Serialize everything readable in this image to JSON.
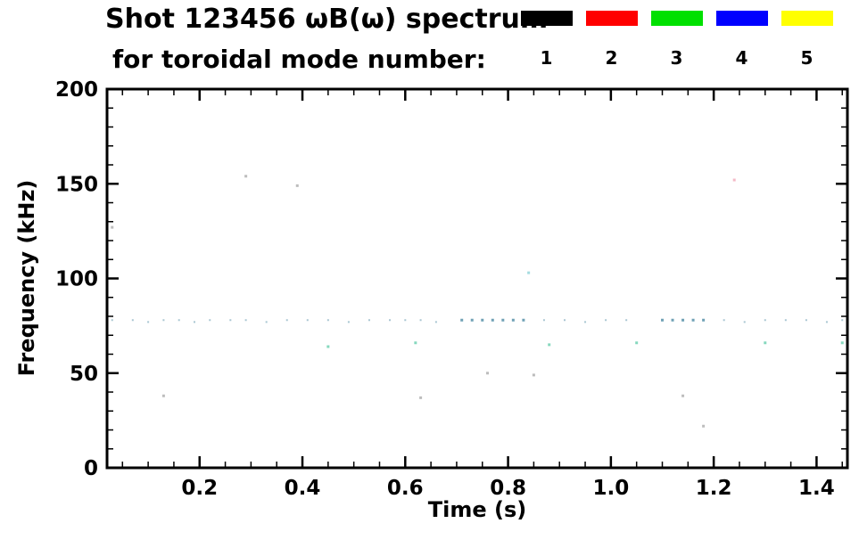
{
  "header": {
    "title_line1": "Shot 123456 ωB(ω) spectrum",
    "title_line2": "for toroidal mode number:"
  },
  "axes": {
    "x_label": "Time (s)",
    "y_label": "Frequency (kHz)",
    "x_tick_labels": [
      "0.2",
      "0.4",
      "0.6",
      "0.8",
      "1.0",
      "1.2",
      "1.4"
    ],
    "y_tick_labels": [
      "0",
      "50",
      "100",
      "150",
      "200"
    ]
  },
  "chart_data": {
    "type": "scatter",
    "title": "Shot 123456 ωB(ω) spectrum for toroidal mode number:",
    "xlabel": "Time (s)",
    "ylabel": "Frequency (kHz)",
    "xlim": [
      0.02,
      1.46
    ],
    "ylim": [
      0,
      200
    ],
    "x_ticks": [
      0.2,
      0.4,
      0.6,
      0.8,
      1.0,
      1.2,
      1.4
    ],
    "y_ticks": [
      0,
      50,
      100,
      150,
      200
    ],
    "x_minor_step": 0.05,
    "y_minor_step": 10,
    "grid": false,
    "background": "#ffffff",
    "frame_color": "#000000",
    "legend": {
      "position": "top-right",
      "entries": [
        {
          "label": "1",
          "color": "#000000"
        },
        {
          "label": "2",
          "color": "#ff0000"
        },
        {
          "label": "3",
          "color": "#00e000"
        },
        {
          "label": "4",
          "color": "#0000ff"
        },
        {
          "label": "5",
          "color": "#ffff00"
        }
      ]
    },
    "series": [
      {
        "name": "faint mode band ~78 kHz",
        "color": "#a9c6d2",
        "size": 2,
        "points": [
          [
            0.03,
            78
          ],
          [
            0.07,
            78
          ],
          [
            0.1,
            77
          ],
          [
            0.13,
            78
          ],
          [
            0.16,
            78
          ],
          [
            0.19,
            77
          ],
          [
            0.22,
            78
          ],
          [
            0.26,
            78
          ],
          [
            0.29,
            78
          ],
          [
            0.33,
            77
          ],
          [
            0.37,
            78
          ],
          [
            0.41,
            78
          ],
          [
            0.45,
            78
          ],
          [
            0.49,
            77
          ],
          [
            0.53,
            78
          ],
          [
            0.57,
            78
          ],
          [
            0.6,
            78
          ],
          [
            0.63,
            78
          ],
          [
            0.66,
            77
          ],
          [
            0.87,
            78
          ],
          [
            0.91,
            78
          ],
          [
            0.95,
            77
          ],
          [
            0.99,
            78
          ],
          [
            1.03,
            78
          ],
          [
            1.22,
            78
          ],
          [
            1.26,
            77
          ],
          [
            1.3,
            78
          ],
          [
            1.34,
            78
          ],
          [
            1.38,
            78
          ],
          [
            1.42,
            77
          ],
          [
            1.45,
            78
          ]
        ]
      },
      {
        "name": "stronger mode band segments ~78 kHz",
        "color": "#6fa0b5",
        "size": 3,
        "points": [
          [
            0.71,
            78
          ],
          [
            0.73,
            78
          ],
          [
            0.75,
            78
          ],
          [
            0.77,
            78
          ],
          [
            0.79,
            78
          ],
          [
            0.81,
            78
          ],
          [
            0.83,
            78
          ],
          [
            1.1,
            78
          ],
          [
            1.12,
            78
          ],
          [
            1.14,
            78
          ],
          [
            1.16,
            78
          ],
          [
            1.18,
            78
          ]
        ]
      },
      {
        "name": "scattered points ~65 kHz",
        "color": "#86d8be",
        "size": 3,
        "points": [
          [
            0.45,
            64
          ],
          [
            0.62,
            66
          ],
          [
            0.88,
            65
          ],
          [
            1.05,
            66
          ],
          [
            1.3,
            66
          ],
          [
            1.45,
            66
          ]
        ]
      },
      {
        "name": "isolated faint gray points",
        "color": "#bdbdbd",
        "size": 3,
        "points": [
          [
            0.29,
            154
          ],
          [
            0.39,
            149
          ],
          [
            0.03,
            127
          ],
          [
            0.76,
            50
          ],
          [
            0.85,
            49
          ],
          [
            0.13,
            38
          ],
          [
            0.63,
            37
          ],
          [
            1.14,
            38
          ],
          [
            1.18,
            22
          ]
        ]
      },
      {
        "name": "isolated faint pink point ~152 kHz",
        "color": "#f4b9c6",
        "size": 3,
        "points": [
          [
            1.24,
            152
          ]
        ]
      },
      {
        "name": "isolated faint cyan point ~103 kHz",
        "color": "#a5dce0",
        "size": 3,
        "points": [
          [
            0.84,
            103
          ]
        ]
      }
    ]
  }
}
